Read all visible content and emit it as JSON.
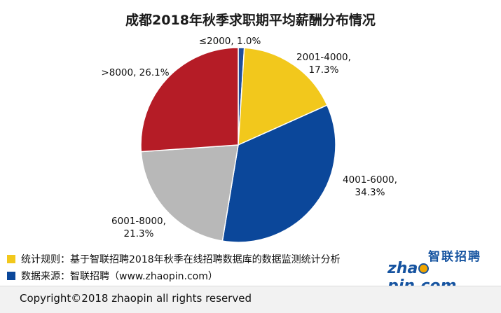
{
  "chart_data": {
    "type": "pie",
    "title": "成都2018年秋季求职期平均薪酬分布情况",
    "slices": [
      {
        "label": "≤2000, 1.0%",
        "value": 1.0,
        "color": "#1f4e9a"
      },
      {
        "label": "2001-4000,",
        "label2": "17.3%",
        "value": 17.3,
        "color": "#f2c81c"
      },
      {
        "label": "4001-6000,",
        "label2": "34.3%",
        "value": 34.3,
        "color": "#0b479a"
      },
      {
        "label": "6001-8000,",
        "label2": "21.3%",
        "value": 21.3,
        "color": "#b8b8b8"
      },
      {
        "label": ">8000, 26.1%",
        "value": 26.1,
        "color": "#b51c26"
      }
    ],
    "start_angle_deg": 0,
    "direction": "clockwise"
  },
  "notes": {
    "rule_text": "统计规则：基于智联招聘2018年秋季在线招聘数据库的数据监测统计分析",
    "rule_color": "#f2c81c",
    "source_text": "数据来源：智联招聘（www.zhaopin.com）",
    "source_color": "#0b479a"
  },
  "logo": {
    "cn": "智联招聘",
    "en_before": "zha",
    "en_after": "pin.com"
  },
  "footer": {
    "copyright": "Copyright©2018 zhaopin all rights reserved"
  }
}
